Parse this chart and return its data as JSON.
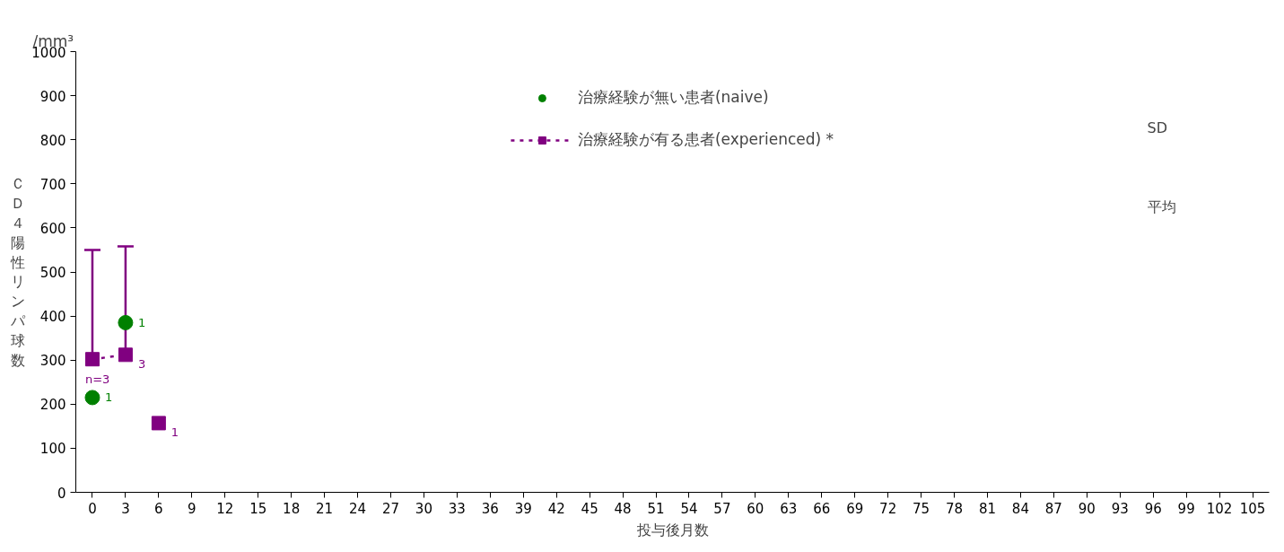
{
  "chart_data": {
    "type": "line",
    "xlabel": "投与後月数",
    "ylabel": "ＣＤ４陽性リンパ球数",
    "x": [
      0,
      3
    ],
    "series": [
      {
        "name": "治療経験が無い患者(naive)",
        "type": "scatter",
        "color": "#008000",
        "values": [
          215,
          385
        ],
        "marker": "circle",
        "line_style": "solid"
      },
      {
        "name": "治療経験が有る患者(experienced) *",
        "color": "#800080",
        "x": [
          0,
          3,
          4.5,
          6
        ],
        "values": [
          302,
          312,
          null,
          157
        ],
        "marker": "square",
        "line_style": "dashed",
        "errors": [
          [
            302,
            550
          ],
          [
            312,
            558
          ],
          null,
          null
        ]
      }
    ],
    "xlim": [
      -1.5,
      106.5
    ],
    "xticks": [
      0,
      3,
      6,
      9,
      12,
      15,
      18,
      21,
      24,
      27,
      30,
      33,
      36,
      39,
      42,
      45,
      48,
      51,
      54,
      57,
      60,
      63,
      66,
      69,
      72,
      75,
      78,
      81,
      84,
      87,
      90,
      93,
      96,
      99,
      102,
      105
    ],
    "ylim": [
      0,
      1000
    ],
    "yticks": [
      0,
      100,
      200,
      300,
      400,
      500,
      600,
      700,
      800,
      900,
      1000
    ],
    "grid": false,
    "legend": "top",
    "annotations": [
      "/mm³",
      "SD",
      "平均",
      {
        "text": "1",
        "x": 0,
        "y": 215
      },
      {
        "text": "1",
        "x": 3,
        "y": 385
      },
      {
        "text": "n=3",
        "x": 0,
        "y": 302
      },
      {
        "text": "3",
        "x": 3,
        "y": 312
      },
      {
        "text": "1",
        "x": 6,
        "y": 157
      }
    ]
  }
}
